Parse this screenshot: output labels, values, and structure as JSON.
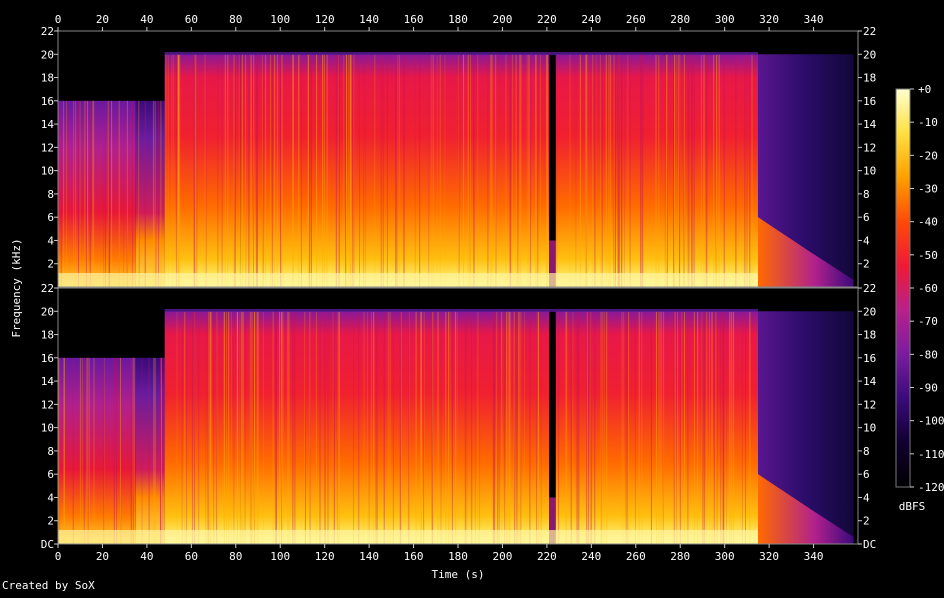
{
  "chart_data": {
    "type": "heatmap",
    "xlabel": "Time (s)",
    "ylabel": "Frequency (kHz)",
    "x_ticks": [
      "0",
      "20",
      "40",
      "60",
      "80",
      "100",
      "120",
      "140",
      "160",
      "180",
      "200",
      "220",
      "240",
      "260",
      "280",
      "300",
      "320",
      "340"
    ],
    "y_ticks_top": [
      "2",
      "4",
      "6",
      "8",
      "10",
      "12",
      "14",
      "16",
      "18",
      "20",
      "22"
    ],
    "y_ticks_bottom": [
      "DC",
      "2",
      "4",
      "6",
      "8",
      "10",
      "12",
      "14",
      "16",
      "18",
      "20",
      "22"
    ],
    "xlim": [
      0,
      360
    ],
    "ylim": [
      0,
      22
    ],
    "colorbar": {
      "label": "dBFS",
      "ticks": [
        "+0",
        "-10",
        "-20",
        "-30",
        "-40",
        "-50",
        "-60",
        "-70",
        "-80",
        "-90",
        "-100",
        "-110",
        "-120"
      ],
      "range": [
        -120,
        0
      ],
      "colors": [
        "#000000",
        "#100030",
        "#3a0a7a",
        "#7a1ca0",
        "#b8208a",
        "#ef1a36",
        "#fd4a08",
        "#ffa000",
        "#ffe040",
        "#ffffd0"
      ]
    },
    "segments": [
      {
        "start": 0,
        "end": 35,
        "level": "mid",
        "band_top_khz": 16
      },
      {
        "start": 35,
        "end": 48,
        "level": "low",
        "band_top_khz": 16
      },
      {
        "start": 48,
        "end": 82,
        "level": "high",
        "band_top_khz": 20
      },
      {
        "start": 82,
        "end": 221,
        "level": "very-high",
        "band_top_khz": 20
      },
      {
        "start": 221,
        "end": 224,
        "level": "gap",
        "band_top_khz": 4
      },
      {
        "start": 224,
        "end": 315,
        "level": "high",
        "band_top_khz": 20
      },
      {
        "start": 315,
        "end": 358,
        "level": "fade",
        "band_top_khz": 20
      }
    ],
    "channels": 2
  },
  "footer": {
    "credit": "Created by SoX"
  }
}
